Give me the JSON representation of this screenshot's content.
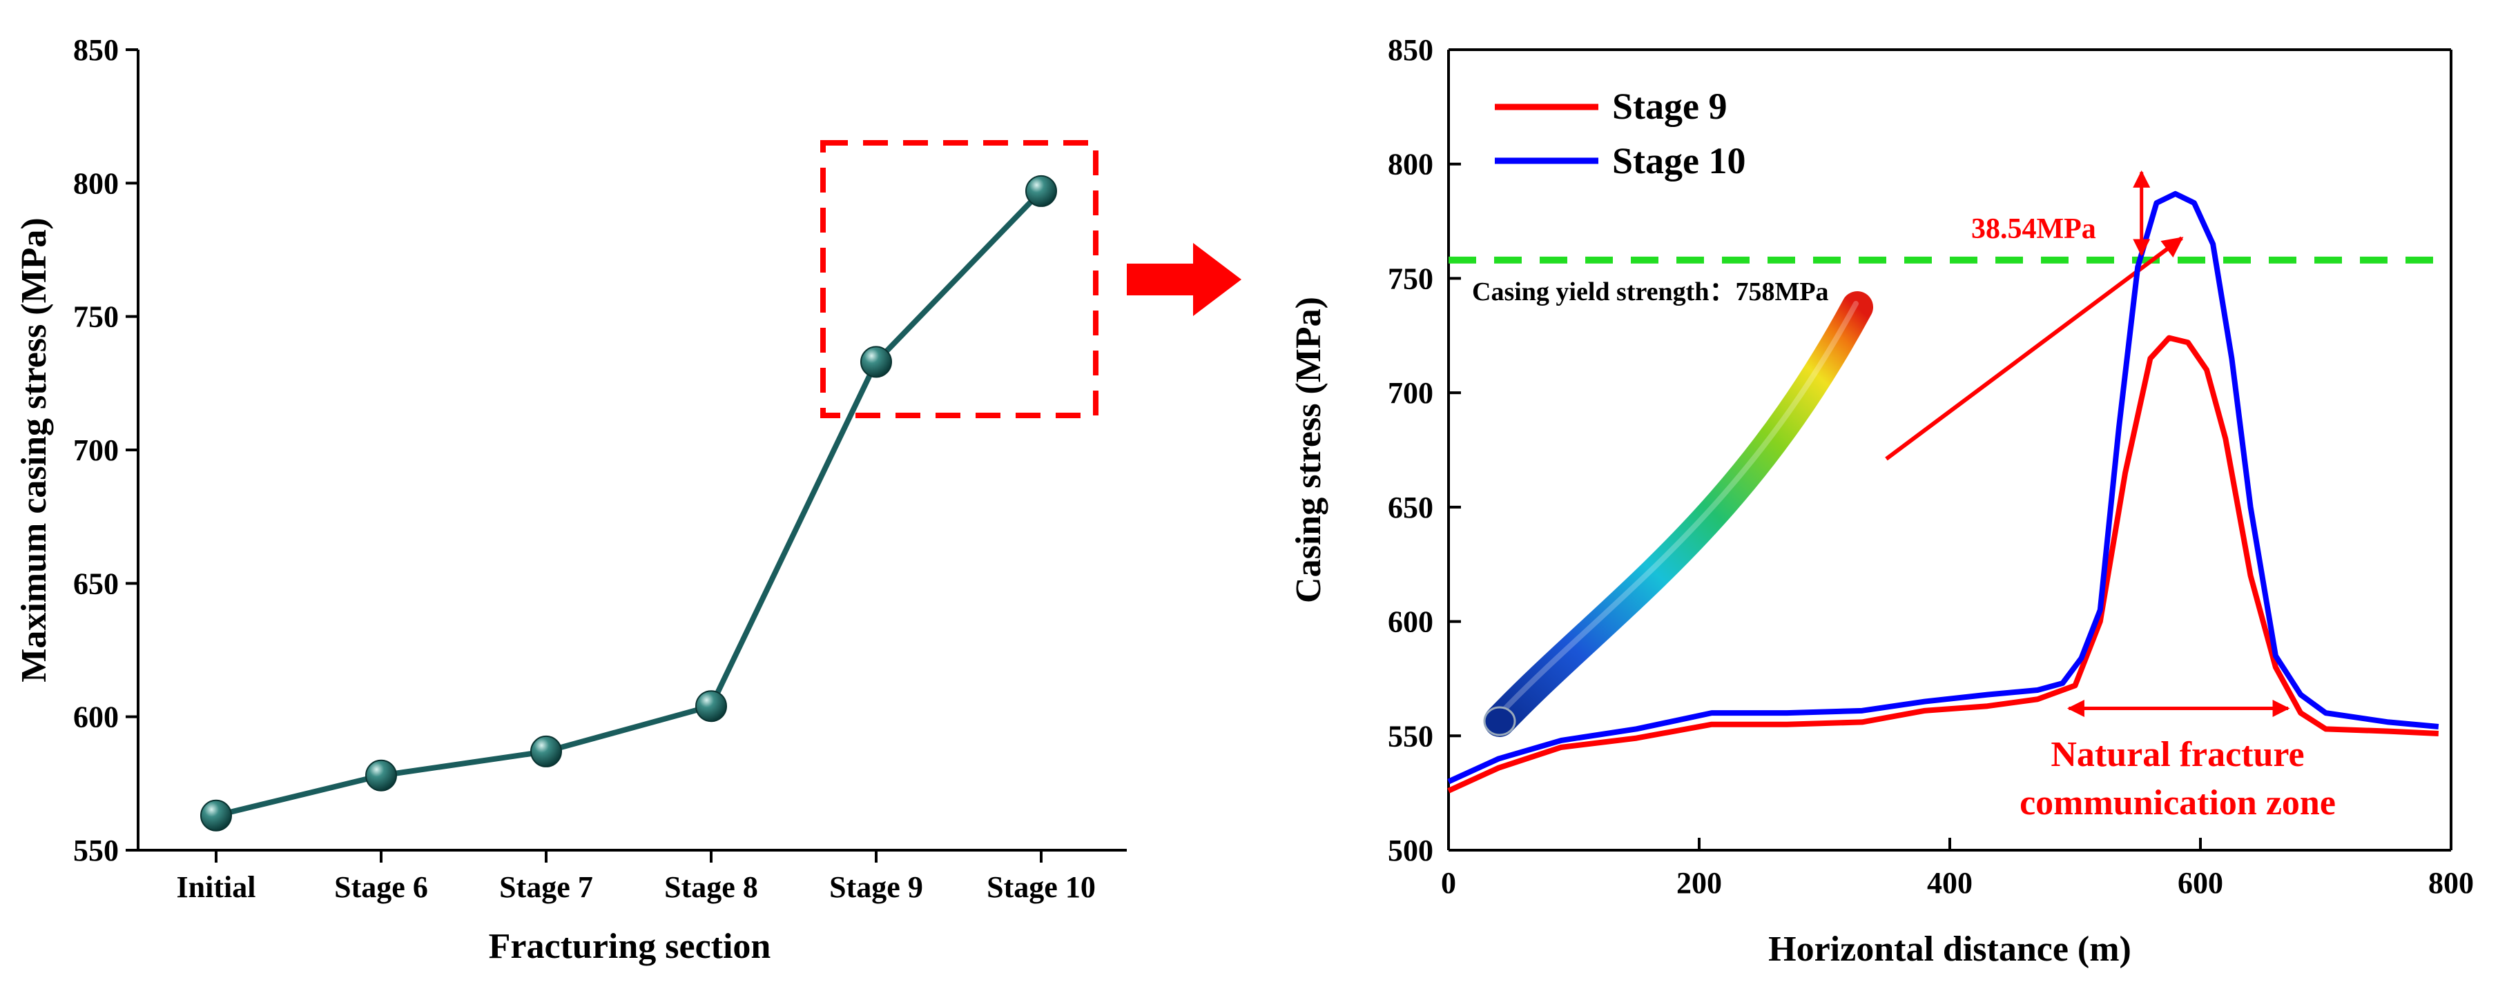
{
  "chart_data": [
    {
      "type": "line",
      "categories": [
        "Initial",
        "Stage 6",
        "Stage 7",
        "Stage 8",
        "Stage 9",
        "Stage 10"
      ],
      "values": [
        563,
        578,
        587,
        604,
        733,
        797
      ],
      "xlabel": "Fracturing section",
      "ylabel": "Maximum casing stress (MPa)",
      "ylim": [
        550,
        850
      ],
      "yticks": [
        550,
        600,
        650,
        700,
        750,
        800,
        850
      ],
      "ytick_labels": [
        "550",
        "600",
        "650",
        "700",
        "750",
        "800",
        "850"
      ],
      "colors": {
        "line": "#1a5c5c",
        "marker": "#1f6b68",
        "highlight_box": "#ff0000"
      },
      "annotations": [
        "dashed red box highlighting Stage 9 and Stage 10"
      ]
    },
    {
      "type": "line",
      "xlabel": "Horizontal distance (m)",
      "ylabel": "Casing stress (MPa)",
      "xlim": [
        0,
        800
      ],
      "ylim": [
        500,
        850
      ],
      "xticks": [
        0,
        200,
        400,
        600,
        800
      ],
      "xtick_labels": [
        "0",
        "200",
        "400",
        "600",
        "800"
      ],
      "yticks": [
        500,
        550,
        600,
        650,
        700,
        750,
        800,
        850
      ],
      "ytick_labels": [
        "500",
        "550",
        "600",
        "650",
        "700",
        "750",
        "800",
        "850"
      ],
      "legend_position": "top-left",
      "series": [
        {
          "name": "Stage 9",
          "color": "#ff0000",
          "x": [
            0,
            40,
            90,
            150,
            210,
            270,
            330,
            380,
            430,
            470,
            500,
            520,
            540,
            560,
            575,
            590,
            605,
            620,
            640,
            660,
            680,
            700,
            750,
            790
          ],
          "y": [
            526,
            536,
            545,
            549,
            555,
            555,
            556,
            561,
            563,
            566,
            572,
            600,
            665,
            715,
            724,
            722,
            710,
            680,
            620,
            580,
            560,
            553,
            552,
            551
          ]
        },
        {
          "name": "Stage 10",
          "color": "#0000ff",
          "x": [
            0,
            40,
            90,
            150,
            210,
            270,
            330,
            380,
            430,
            470,
            490,
            505,
            520,
            535,
            550,
            565,
            580,
            595,
            610,
            625,
            640,
            660,
            680,
            700,
            750,
            790
          ],
          "y": [
            530,
            540,
            548,
            553,
            560,
            560,
            561,
            565,
            568,
            570,
            573,
            584,
            605,
            685,
            755,
            783,
            787,
            783,
            765,
            715,
            650,
            585,
            568,
            560,
            556,
            554
          ]
        }
      ],
      "reference_line": {
        "y": 758,
        "color": "#22dd22",
        "label": "Casing yield strength：758MPa"
      },
      "annotations": {
        "difference_label": "38.54MPa",
        "zone_label_line1": "Natural fracture",
        "zone_label_line2": "communication zone",
        "zone_x_range": [
          495,
          670
        ],
        "zone_y": 562,
        "diff_arrow_x": 553,
        "diff_arrow_y_range": [
          758,
          796.5
        ]
      }
    }
  ]
}
